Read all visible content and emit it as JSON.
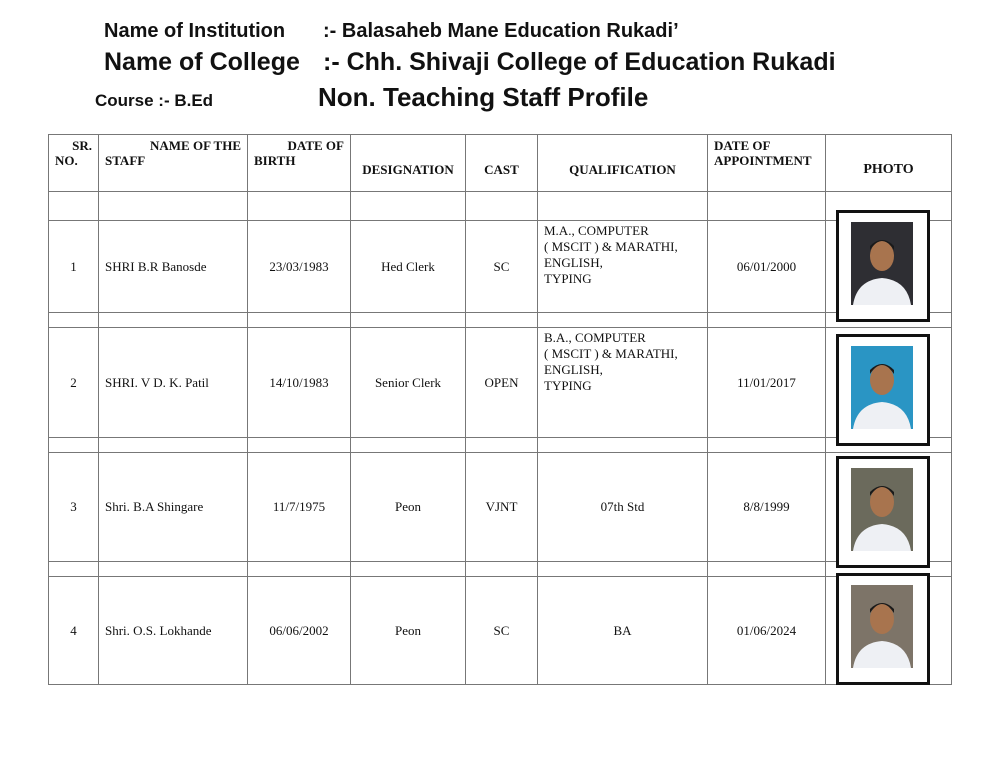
{
  "header": {
    "institution_label": "Name of Institution",
    "institution_value": ":- Balasaheb Mane Education Rukadi’",
    "college_label": "Name of College",
    "college_value": ":- Chh. Shivaji College of Education Rukadi",
    "course": "Course :- B.Ed",
    "title": "Non. Teaching Staff Profile"
  },
  "table": {
    "columns": [
      "SR. NO.",
      "NAME OF THE STAFF",
      "DATE OF BIRTH",
      "DESIGNATION",
      "CAST",
      "QUALIFICATION",
      "DATE OF APPOINTMENT",
      "PHOTO"
    ],
    "col_labels": {
      "sr1": "SR.",
      "sr2": "NO.",
      "name1": "NAME OF THE",
      "name2": "STAFF",
      "dob1": "DATE OF",
      "dob2": "BIRTH",
      "doa1": "DATE OF",
      "doa2": "APPOINTMENT"
    },
    "rows": [
      {
        "sr": "1",
        "name": "SHRI B.R Banosde",
        "dob": "23/03/1983",
        "designation": "Hed Clerk",
        "cast": "SC",
        "qualification": [
          "M.A., COMPUTER",
          "( MSCIT ) & MARATHI,",
          "ENGLISH,",
          "TYPING"
        ],
        "doa": "06/01/2000",
        "photo_bg": "#2e2e33"
      },
      {
        "sr": "2",
        "name": "SHRI. V D. K. Patil",
        "dob": "14/10/1983",
        "designation": "Senior Clerk",
        "cast": "OPEN",
        "qualification": [
          "B.A., COMPUTER",
          "( MSCIT ) & MARATHI,",
          "ENGLISH,",
          "TYPING"
        ],
        "doa": "11/01/2017",
        "photo_bg": "#2a95c4"
      },
      {
        "sr": "3",
        "name": "Shri. B.A Shingare",
        "dob": "11/7/1975",
        "designation": "Peon",
        "cast": "VJNT",
        "qualification": [
          "07th Std"
        ],
        "doa": "8/8/1999",
        "photo_bg": "#6b6a5c"
      },
      {
        "sr": "4",
        "name": "Shri. O.S. Lokhande",
        "dob": "06/06/2002",
        "designation": "Peon",
        "cast": "SC",
        "qualification": [
          "BA"
        ],
        "doa": "01/06/2024",
        "photo_bg": "#7d7468"
      }
    ]
  }
}
